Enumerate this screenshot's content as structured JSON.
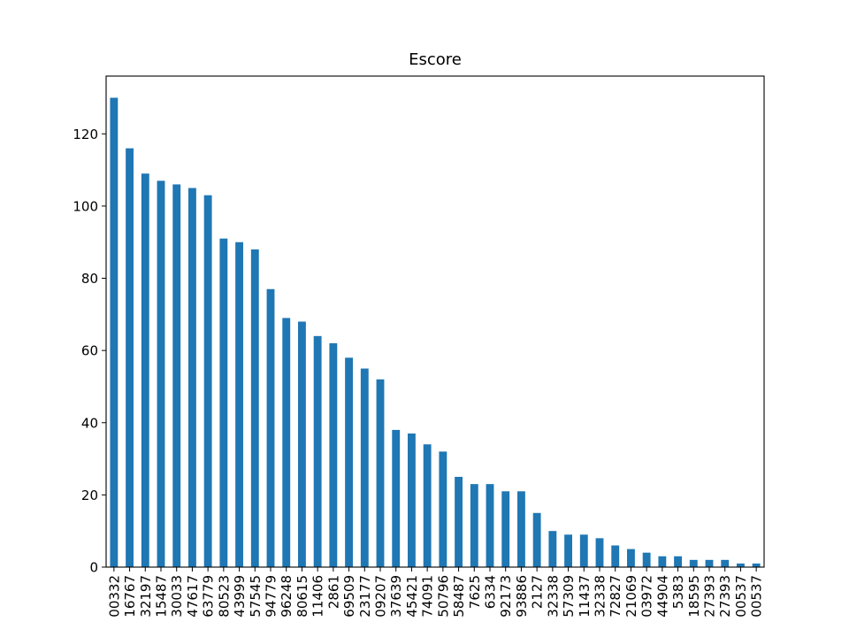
{
  "chart_data": {
    "type": "bar",
    "title": "Escore",
    "xlabel": "",
    "ylabel": "",
    "bar_color": "#1f77b4",
    "grid": false,
    "legend": "none",
    "ylim": [
      0,
      136
    ],
    "yticks": [
      0,
      20,
      40,
      60,
      80,
      100,
      120
    ],
    "categories": [
      "00332",
      "16767",
      "32197",
      "15487",
      "30033",
      "47617",
      "63779",
      "80523",
      "43999",
      "57545",
      "94779",
      "96248",
      "80615",
      "11406",
      "2861",
      "69509",
      "23177",
      "09207",
      "37639",
      "45421",
      "74091",
      "50796",
      "58487",
      "7625",
      "6334",
      "92173",
      "93886",
      "2127",
      "32338",
      "57309",
      "11437",
      "32338",
      "72827",
      "21069",
      "03972",
      "44904",
      "5383",
      "18595",
      "27393",
      "27393",
      "00537",
      "00537"
    ],
    "values": [
      130,
      116,
      109,
      107,
      106,
      105,
      103,
      91,
      90,
      88,
      77,
      69,
      68,
      64,
      62,
      58,
      55,
      52,
      38,
      37,
      34,
      32,
      25,
      23,
      23,
      21,
      21,
      15,
      10,
      9,
      9,
      8,
      6,
      5,
      4,
      3,
      3,
      2,
      2,
      2,
      1,
      1
    ]
  }
}
